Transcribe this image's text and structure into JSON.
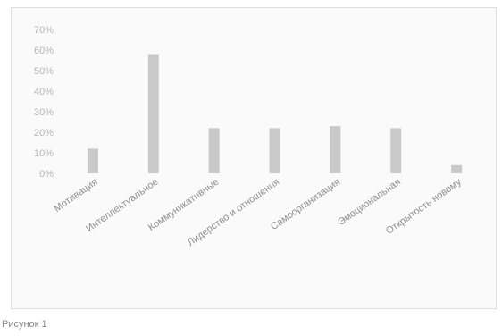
{
  "chart_data": {
    "type": "bar",
    "categories": [
      "Мотивация",
      "Интеллектуальное",
      "Коммуникативные",
      "Лидерство и отношения",
      "Самоорганизация",
      "Эмоциональная",
      "Открытость новому"
    ],
    "values": [
      12,
      58,
      22,
      22,
      23,
      22,
      4
    ],
    "yticks": [
      "70%",
      "60%",
      "50%",
      "40%",
      "30%",
      "20%",
      "10%",
      "0%"
    ],
    "ylim": [
      0,
      70
    ],
    "ylabel_format": "percent",
    "bar_color": "#c9c9c9",
    "grid": false,
    "legend": "none"
  },
  "caption": "Рисунок 1"
}
